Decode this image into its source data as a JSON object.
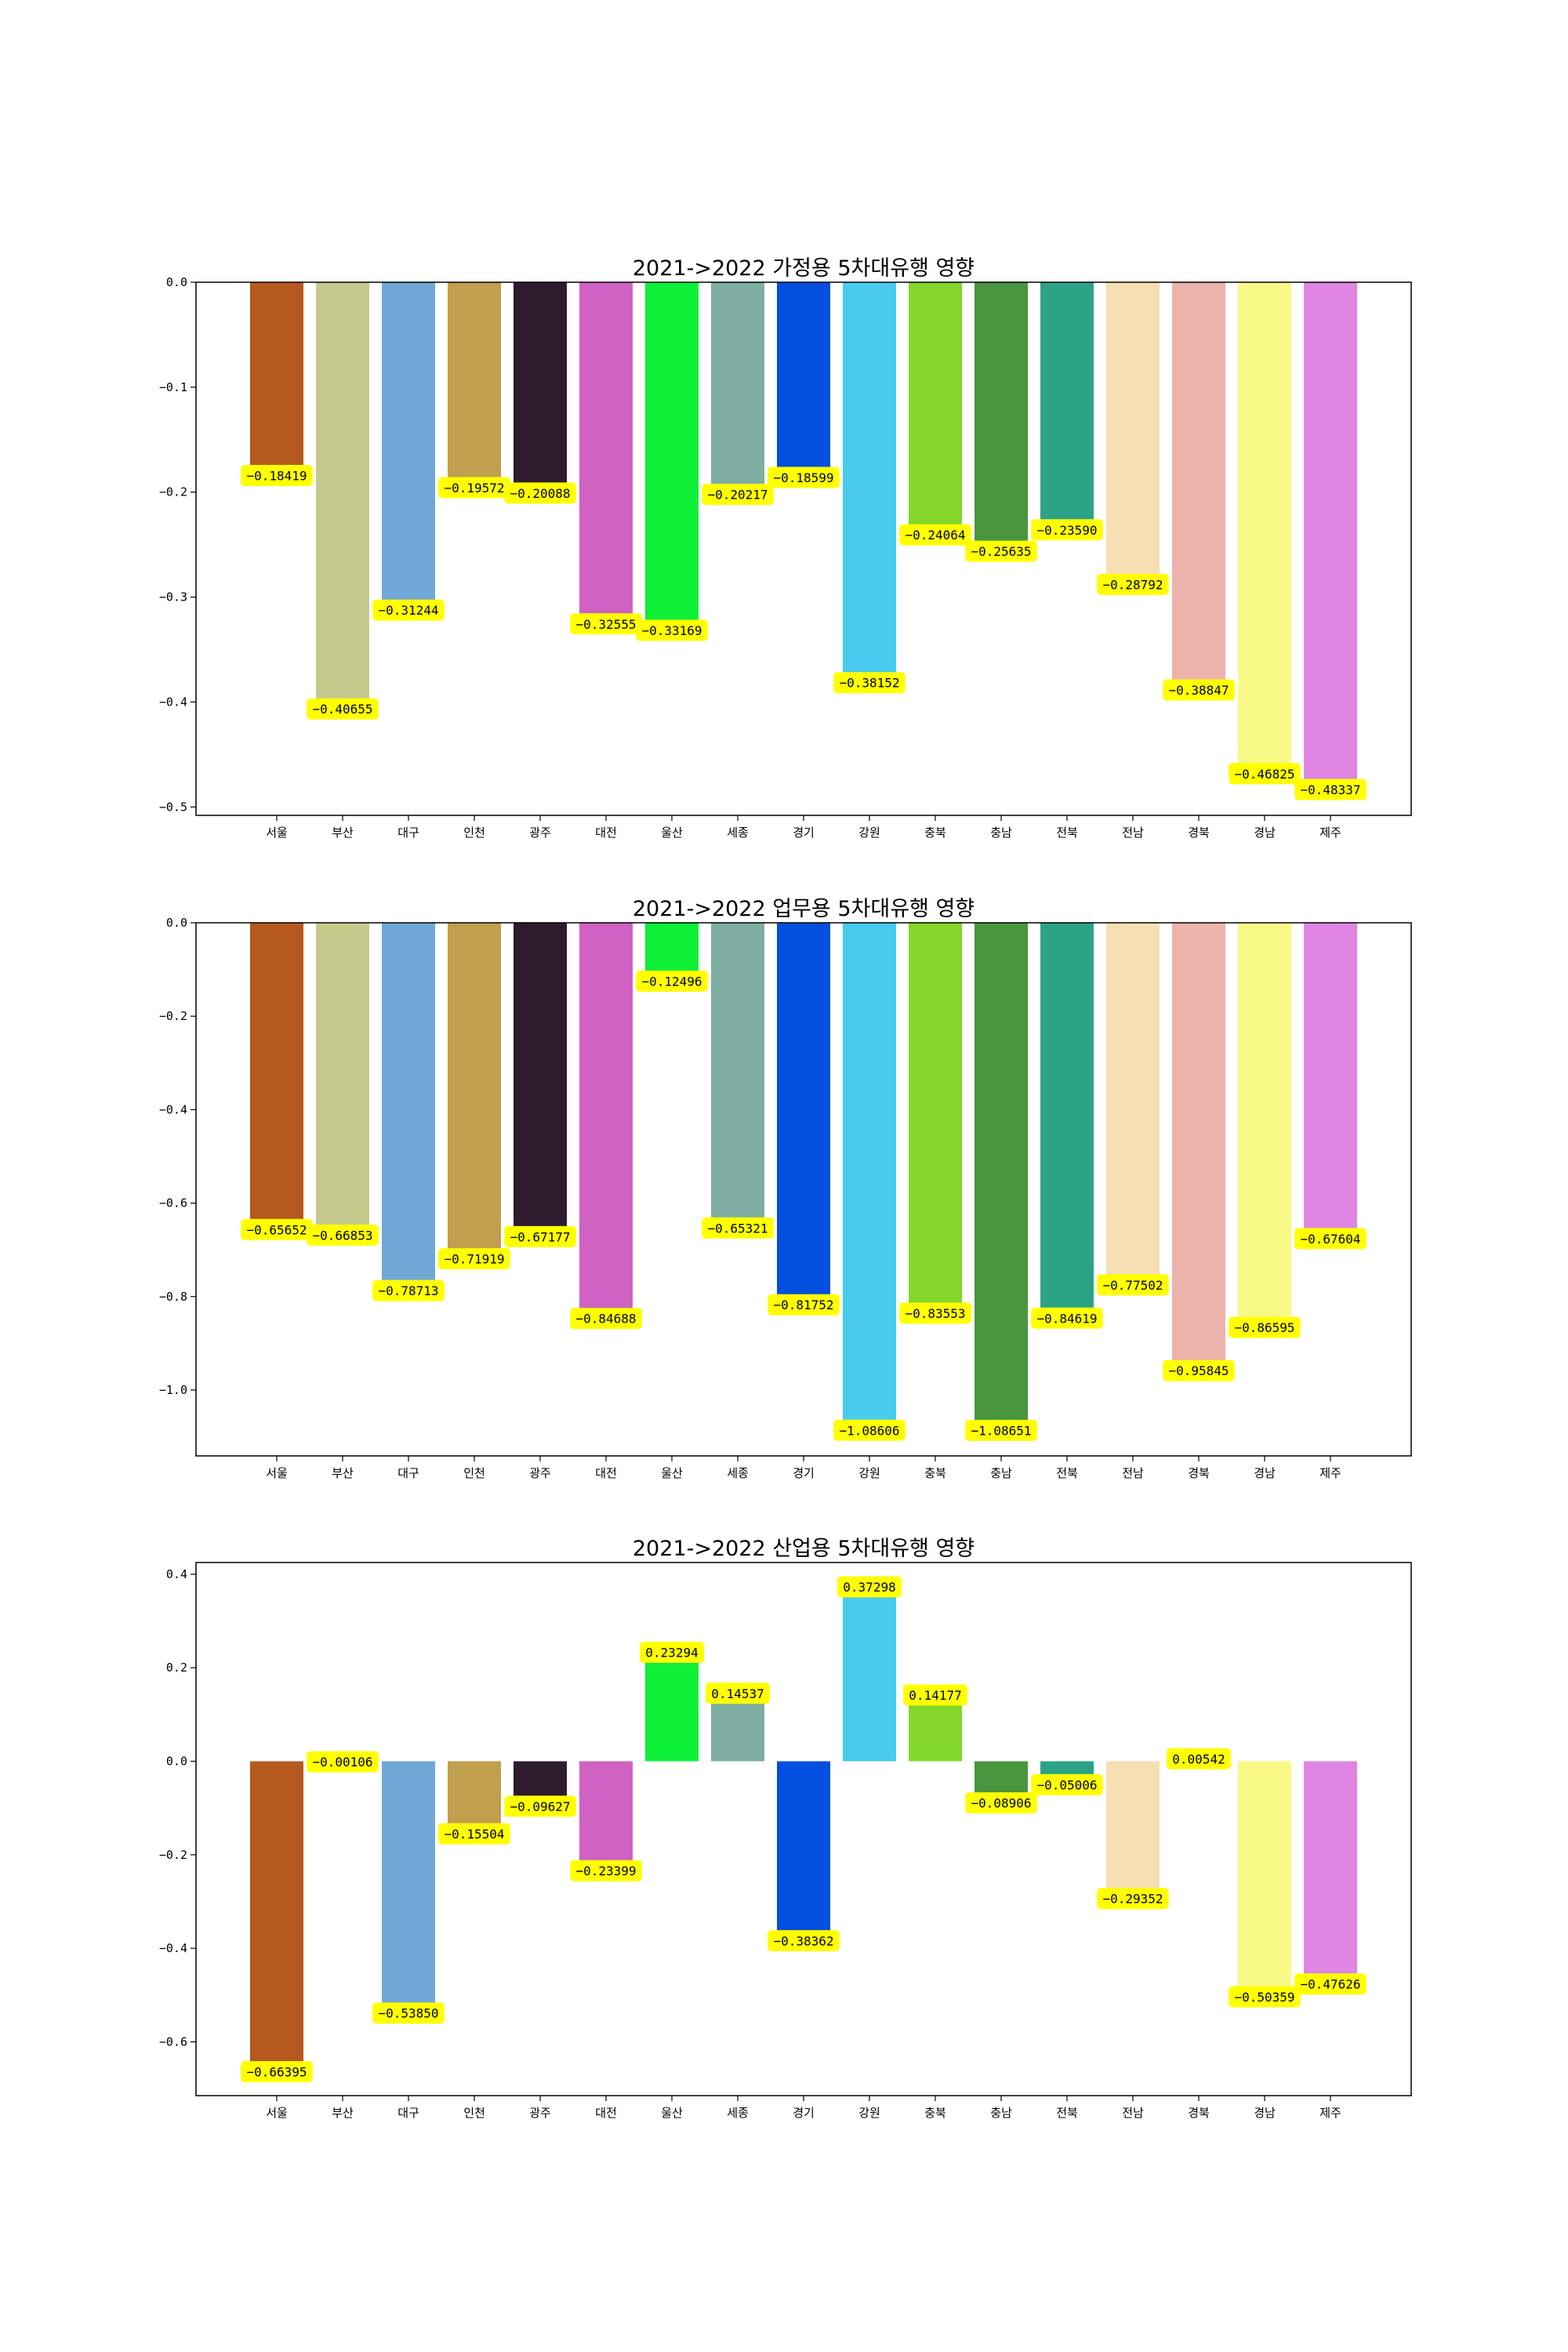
{
  "chart_data": [
    {
      "type": "bar",
      "title": "2021->2022 가정용 5차대유행 영향",
      "categories": [
        "서울",
        "부산",
        "대구",
        "인천",
        "광주",
        "대전",
        "울산",
        "세종",
        "경기",
        "강원",
        "충북",
        "충남",
        "전북",
        "전남",
        "경북",
        "경남",
        "제주"
      ],
      "values": [
        -0.18419,
        -0.40655,
        -0.31244,
        -0.19572,
        -0.20088,
        -0.32555,
        -0.33169,
        -0.20217,
        -0.18599,
        -0.38152,
        -0.24064,
        -0.25635,
        -0.2359,
        -0.28792,
        -0.38847,
        -0.46825,
        -0.48337
      ],
      "value_labels": [
        "−0.18419",
        "−0.40655",
        "−0.31244",
        "−0.19572",
        "−0.20088",
        "−0.32555",
        "−0.33169",
        "−0.20217",
        "−0.18599",
        "−0.38152",
        "−0.24064",
        "−0.25635",
        "−0.23590",
        "−0.28792",
        "−0.38847",
        "−0.46825",
        "−0.48337"
      ],
      "yticks": [
        0.0,
        -0.1,
        -0.2,
        -0.3,
        -0.4,
        -0.5
      ],
      "ytick_labels": [
        "0.0",
        "−0.1",
        "−0.2",
        "−0.3",
        "−0.4",
        "−0.5"
      ],
      "ylim": [
        -0.508,
        0.0
      ],
      "xlabel": "",
      "ylabel": ""
    },
    {
      "type": "bar",
      "title": "2021->2022 업무용 5차대유행 영향",
      "categories": [
        "서울",
        "부산",
        "대구",
        "인천",
        "광주",
        "대전",
        "울산",
        "세종",
        "경기",
        "강원",
        "충북",
        "충남",
        "전북",
        "전남",
        "경북",
        "경남",
        "제주"
      ],
      "values": [
        -0.65652,
        -0.66853,
        -0.78713,
        -0.71919,
        -0.67177,
        -0.84688,
        -0.12496,
        -0.65321,
        -0.81752,
        -1.08606,
        -0.83553,
        -1.08651,
        -0.84619,
        -0.77502,
        -0.95845,
        -0.86595,
        -0.67604
      ],
      "value_labels": [
        "−0.65652",
        "−0.66853",
        "−0.78713",
        "−0.71919",
        "−0.67177",
        "−0.84688",
        "−0.12496",
        "−0.65321",
        "−0.81752",
        "−1.08606",
        "−0.83553",
        "−1.08651",
        "−0.84619",
        "−0.77502",
        "−0.95845",
        "−0.86595",
        "−0.67604"
      ],
      "yticks": [
        0.0,
        -0.2,
        -0.4,
        -0.6,
        -0.8,
        -1.0
      ],
      "ytick_labels": [
        "0.0",
        "−0.2",
        "−0.4",
        "−0.6",
        "−0.8",
        "−1.0"
      ],
      "ylim": [
        -1.141,
        0.0
      ],
      "xlabel": "",
      "ylabel": ""
    },
    {
      "type": "bar",
      "title": "2021->2022 산업용 5차대유행 영향",
      "categories": [
        "서울",
        "부산",
        "대구",
        "인천",
        "광주",
        "대전",
        "울산",
        "세종",
        "경기",
        "강원",
        "충북",
        "충남",
        "전북",
        "전남",
        "경북",
        "경남",
        "제주"
      ],
      "values": [
        -0.66395,
        -0.00106,
        -0.5385,
        -0.15504,
        -0.09627,
        -0.23399,
        0.23294,
        0.14537,
        -0.38362,
        0.37298,
        0.14177,
        -0.08906,
        -0.05006,
        -0.29352,
        0.00542,
        -0.50359,
        -0.47626
      ],
      "value_labels": [
        "−0.66395",
        "−0.00106",
        "−0.53850",
        "−0.15504",
        "−0.09627",
        "−0.23399",
        "0.23294",
        "0.14537",
        "−0.38362",
        "0.37298",
        "0.14177",
        "−0.08906",
        "−0.05006",
        "−0.29352",
        "0.00542",
        "−0.50359",
        "−0.47626"
      ],
      "yticks": [
        0.4,
        0.2,
        0.0,
        -0.2,
        -0.4,
        -0.6
      ],
      "ytick_labels": [
        "0.4",
        "0.2",
        "0.0",
        "−0.2",
        "−0.4",
        "−0.6"
      ],
      "ylim": [
        -0.715,
        0.425
      ],
      "xlabel": "",
      "ylabel": ""
    }
  ],
  "style": {
    "bar_colors": [
      "#b5591f",
      "#c5ca8c",
      "#6fa8d6",
      "#c19f4c",
      "#2e1b2e",
      "#d062c3",
      "#0df037",
      "#7daea1",
      "#034fdf",
      "#48cbee",
      "#82d72a",
      "#4a963f",
      "#2ca386",
      "#f5dfb3",
      "#ebb3ac",
      "#f9f988",
      "#df86e2"
    ],
    "label_box_color": "#ffff00"
  }
}
